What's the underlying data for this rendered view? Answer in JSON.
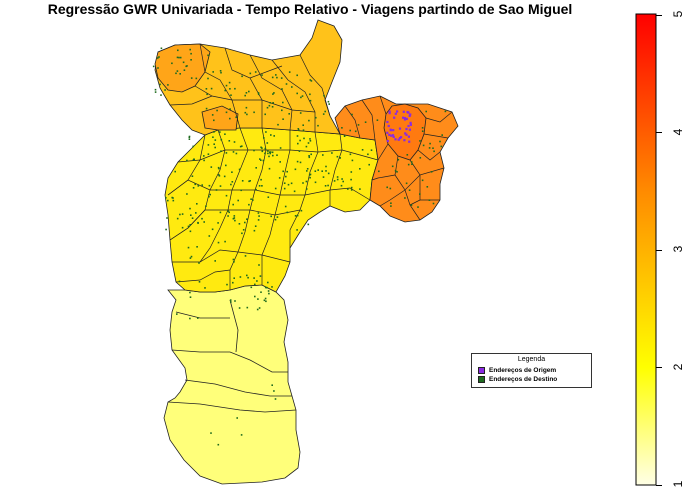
{
  "title": "Regressão GWR Univariada - Tempo Relativo - Viagens partindo de Sao Miguel",
  "legend": {
    "title": "Legenda",
    "items": [
      {
        "label": "Endereços de Origem",
        "color": "#8a2be2"
      },
      {
        "label": "Endereços de Destino",
        "color": "#1f6b1f"
      }
    ]
  },
  "colorbar": {
    "min": 1,
    "max": 5,
    "ticks": [
      "1",
      "2",
      "3",
      "4",
      "5"
    ],
    "colors": [
      "#ffffe6",
      "#ffff00",
      "#ff8c00",
      "#ff0000"
    ]
  },
  "map": {
    "region_colors": {
      "south": "#ffff7a",
      "center": "#ffea10",
      "north": "#ffc21a",
      "northwest": "#ffa518",
      "east": "#ff8c1a",
      "origin_district": "#ff7a10"
    },
    "point_colors": {
      "destination": "#1f6b1f",
      "origin": "#8a2be2"
    }
  }
}
